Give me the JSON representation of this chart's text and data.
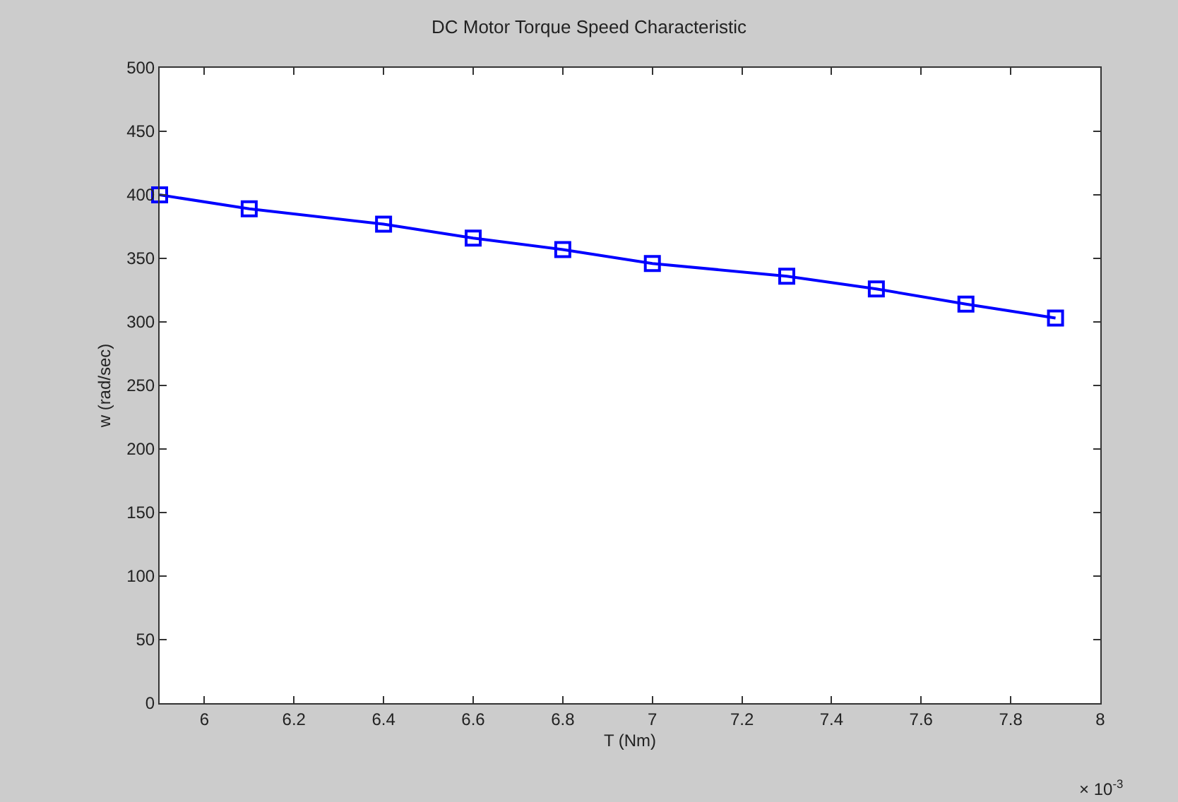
{
  "chart_data": {
    "type": "line",
    "title": "DC Motor Torque Speed Characteristic",
    "xlabel": "T (Nm)",
    "ylabel": "w (rad/sec)",
    "annotations": [
      "× 10$^{-3}$"
    ],
    "x": [
      5.9,
      6.1,
      6.4,
      6.6,
      6.8,
      7.0,
      7.3,
      7.5,
      7.7,
      7.9
    ],
    "series": [
      {
        "color": "#0000ff",
        "values": [
          400,
          389,
          377,
          366,
          357,
          346,
          336,
          326,
          314,
          303
        ]
      }
    ],
    "xlim": [
      5.9,
      8
    ],
    "xticks": [
      6,
      6.2,
      6.4,
      6.6,
      6.8,
      7,
      7.2,
      7.4,
      7.6,
      7.8,
      8
    ],
    "ylim": [
      0,
      500
    ],
    "yticks": [
      0,
      50,
      100,
      150,
      200,
      250,
      300,
      350,
      400,
      450,
      500
    ],
    "marker": "square",
    "line_style": "solid"
  }
}
